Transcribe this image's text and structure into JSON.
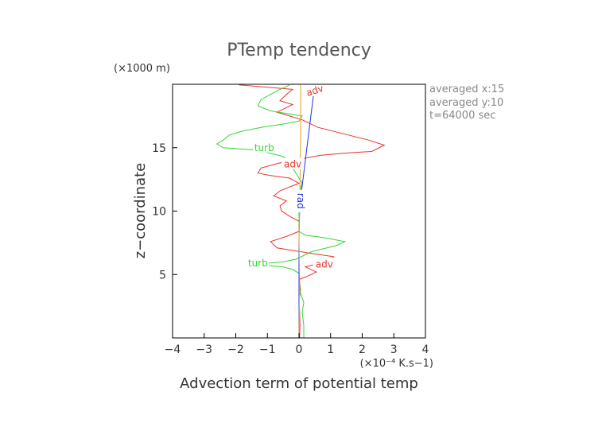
{
  "chart_data": {
    "type": "line",
    "title": "PTemp tendency",
    "xlabel": "Advection term of potential temp",
    "ylabel": "z−coordinate",
    "x_unit": "(×10⁻⁴ K.s−1)",
    "y_unit": "(×1000 m)",
    "xlim": [
      -4,
      4
    ],
    "ylim": [
      0,
      20
    ],
    "xticks": [
      -4,
      -3,
      -2,
      -1,
      0,
      1,
      2,
      3,
      4
    ],
    "yticks": [
      5,
      10,
      15
    ],
    "xtick_labels": [
      "−4",
      "−3",
      "−2",
      "−1",
      "0",
      "1",
      "2",
      "3",
      "4"
    ],
    "ytick_labels": [
      "5",
      "10",
      "15"
    ],
    "grid": false,
    "info": [
      "averaged  x:15",
      "averaged  y:10",
      "t=64000 sec"
    ],
    "series": [
      {
        "name": "adv",
        "color": "#e8332c",
        "label_at": [
          [
            0.5,
            19.5
          ],
          [
            0.8,
            5.8
          ],
          [
            -0.2,
            13.7
          ]
        ],
        "points": [
          [
            0.02,
            0.0
          ],
          [
            0.03,
            1.0
          ],
          [
            0.02,
            2.0
          ],
          [
            0.0,
            3.0
          ],
          [
            0.05,
            3.8
          ],
          [
            0.0,
            4.6
          ],
          [
            0.3,
            4.9
          ],
          [
            0.55,
            5.2
          ],
          [
            0.2,
            5.6
          ],
          [
            1.0,
            6.1
          ],
          [
            1.1,
            6.4
          ],
          [
            0.3,
            6.7
          ],
          [
            -0.7,
            7.1
          ],
          [
            -0.9,
            7.6
          ],
          [
            -0.4,
            8.0
          ],
          [
            0.0,
            8.4
          ],
          [
            0.0,
            9.2
          ],
          [
            -0.3,
            9.6
          ],
          [
            -0.55,
            10.0
          ],
          [
            -0.6,
            10.4
          ],
          [
            -0.4,
            10.8
          ],
          [
            -0.8,
            11.2
          ],
          [
            -0.6,
            11.6
          ],
          [
            -0.2,
            12.0
          ],
          [
            0.0,
            12.2
          ],
          [
            -0.3,
            12.6
          ],
          [
            -0.9,
            12.8
          ],
          [
            -1.3,
            13.0
          ],
          [
            -1.2,
            13.4
          ],
          [
            -0.6,
            13.8
          ],
          [
            0.0,
            14.1
          ],
          [
            0.7,
            14.4
          ],
          [
            1.6,
            14.6
          ],
          [
            2.3,
            14.7
          ],
          [
            2.7,
            15.2
          ],
          [
            2.2,
            15.6
          ],
          [
            1.4,
            16.1
          ],
          [
            0.6,
            16.6
          ],
          [
            0.1,
            17.2
          ],
          [
            -0.3,
            17.5
          ],
          [
            -0.7,
            17.8
          ],
          [
            -0.2,
            18.4
          ],
          [
            -0.6,
            18.7
          ],
          [
            -0.4,
            19.2
          ],
          [
            -0.2,
            19.6
          ],
          [
            -1.9,
            19.95
          ]
        ]
      },
      {
        "name": "turb",
        "color": "#33d633",
        "label_at": [
          [
            -1.1,
            15.0
          ],
          [
            -1.3,
            5.9
          ]
        ],
        "points": [
          [
            0.15,
            0.0
          ],
          [
            0.15,
            1.0
          ],
          [
            0.1,
            2.0
          ],
          [
            0.15,
            2.8
          ],
          [
            0.05,
            3.5
          ],
          [
            0.0,
            4.5
          ],
          [
            0.0,
            5.1
          ],
          [
            -0.2,
            5.4
          ],
          [
            -0.5,
            5.6
          ],
          [
            -1.4,
            5.8
          ],
          [
            -0.5,
            6.0
          ],
          [
            -0.1,
            6.2
          ],
          [
            0.4,
            6.8
          ],
          [
            1.2,
            7.3
          ],
          [
            1.45,
            7.6
          ],
          [
            0.8,
            7.9
          ],
          [
            0.2,
            8.1
          ],
          [
            0.0,
            8.4
          ],
          [
            0.0,
            10.3
          ],
          [
            0.05,
            10.8
          ],
          [
            0.0,
            11.2
          ],
          [
            0.05,
            11.8
          ],
          [
            0.1,
            12.2
          ],
          [
            0.0,
            12.6
          ],
          [
            -0.2,
            13.4
          ],
          [
            -0.3,
            14.0
          ],
          [
            -0.5,
            14.3
          ],
          [
            -1.3,
            14.8
          ],
          [
            -2.4,
            15.0
          ],
          [
            -2.6,
            15.3
          ],
          [
            -2.4,
            15.6
          ],
          [
            -2.2,
            16.0
          ],
          [
            -1.8,
            16.3
          ],
          [
            -1.2,
            16.6
          ],
          [
            -0.4,
            16.9
          ],
          [
            0.0,
            17.1
          ],
          [
            0.1,
            17.5
          ],
          [
            -0.9,
            17.9
          ],
          [
            -1.3,
            18.3
          ],
          [
            -1.2,
            18.8
          ],
          [
            -0.9,
            19.2
          ],
          [
            -0.6,
            19.6
          ],
          [
            -0.3,
            19.95
          ]
        ]
      },
      {
        "name": "rad",
        "color": "#2233dd",
        "label_at": [
          [
            0.05,
            10.8
          ]
        ],
        "points": [
          [
            0.0,
            0.0
          ],
          [
            0.0,
            5.0
          ],
          [
            0.0,
            8.0
          ],
          [
            0.02,
            10.0
          ],
          [
            0.05,
            11.0
          ],
          [
            0.1,
            12.0
          ],
          [
            0.15,
            13.0
          ],
          [
            0.2,
            14.0
          ],
          [
            0.25,
            15.0
          ],
          [
            0.3,
            16.0
          ],
          [
            0.35,
            17.0
          ],
          [
            0.4,
            18.0
          ],
          [
            0.45,
            19.0
          ],
          [
            0.5,
            19.95
          ]
        ]
      },
      {
        "name": "",
        "color": "#e8a020",
        "points": [
          [
            0.0,
            0.0
          ],
          [
            0.02,
            4.5
          ],
          [
            0.0,
            8.0
          ],
          [
            0.03,
            12.0
          ],
          [
            0.05,
            16.0
          ],
          [
            0.05,
            19.95
          ]
        ]
      }
    ]
  }
}
